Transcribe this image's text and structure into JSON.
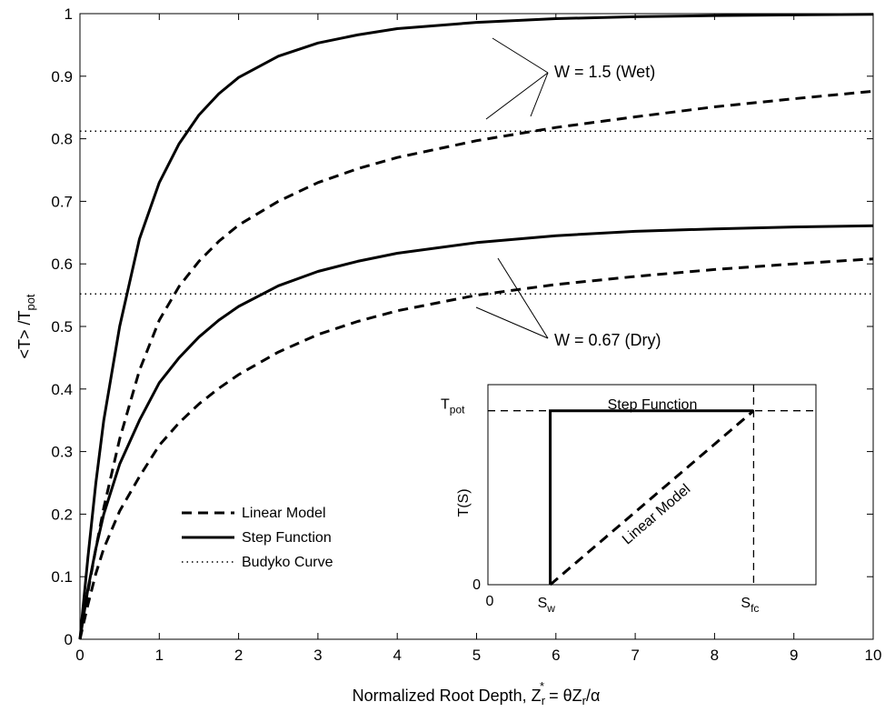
{
  "chart_data": [
    {
      "type": "line",
      "xlabel": {
        "text": "Normalized Root Depth, Z",
        "sub": "r",
        "sup": "*",
        "rhs": " = θZ",
        "rhs_sub": "r",
        "rhs_tail": "/α"
      },
      "ylabel": {
        "text": "<T> /T",
        "sub": "pot"
      },
      "xlim": [
        0,
        10
      ],
      "ylim": [
        0,
        1
      ],
      "xticks": [
        "0",
        "1",
        "2",
        "3",
        "4",
        "5",
        "6",
        "7",
        "8",
        "9",
        "10"
      ],
      "yticks": [
        "0",
        "0.1",
        "0.2",
        "0.3",
        "0.4",
        "0.5",
        "0.6",
        "0.7",
        "0.8",
        "0.9",
        "1"
      ],
      "legend_position": "lower-left",
      "legend": [
        {
          "label": "Linear Model",
          "style": "dashed"
        },
        {
          "label": "Step Function",
          "style": "solid"
        },
        {
          "label": "Budyko Curve",
          "style": "dotted"
        }
      ],
      "annotations": [
        {
          "text": "W = 1.5 (Wet)"
        },
        {
          "text": "W = 0.67 (Dry)"
        }
      ],
      "series": [
        {
          "style": "solid",
          "group": "W = 1.5 (Wet)",
          "x": [
            0,
            0.1,
            0.2,
            0.3,
            0.5,
            0.75,
            1,
            1.25,
            1.5,
            1.75,
            2,
            2.5,
            3,
            3.5,
            4,
            5,
            6,
            7,
            8,
            9,
            10
          ],
          "y": [
            0,
            0.13,
            0.25,
            0.35,
            0.5,
            0.64,
            0.73,
            0.792,
            0.838,
            0.872,
            0.898,
            0.932,
            0.953,
            0.966,
            0.976,
            0.986,
            0.992,
            0.995,
            0.997,
            0.998,
            0.999
          ]
        },
        {
          "style": "dashed",
          "group": "W = 1.5 (Wet)",
          "x": [
            0,
            0.1,
            0.2,
            0.3,
            0.5,
            0.75,
            1,
            1.25,
            1.5,
            1.75,
            2,
            2.5,
            3,
            3.5,
            4,
            5,
            6,
            7,
            8,
            9,
            10
          ],
          "y": [
            0,
            0.075,
            0.145,
            0.21,
            0.32,
            0.43,
            0.51,
            0.564,
            0.604,
            0.636,
            0.662,
            0.7,
            0.73,
            0.752,
            0.77,
            0.797,
            0.818,
            0.835,
            0.851,
            0.864,
            0.876
          ]
        },
        {
          "style": "solid",
          "group": "W = 0.67 (Dry)",
          "x": [
            0,
            0.1,
            0.2,
            0.3,
            0.5,
            0.75,
            1,
            1.25,
            1.5,
            1.75,
            2,
            2.5,
            3,
            3.5,
            4,
            5,
            6,
            7,
            8,
            9,
            10
          ],
          "y": [
            0,
            0.08,
            0.145,
            0.2,
            0.28,
            0.35,
            0.41,
            0.45,
            0.483,
            0.51,
            0.532,
            0.565,
            0.588,
            0.604,
            0.617,
            0.634,
            0.645,
            0.652,
            0.656,
            0.659,
            0.661
          ]
        },
        {
          "style": "dashed",
          "group": "W = 0.67 (Dry)",
          "x": [
            0,
            0.1,
            0.2,
            0.3,
            0.5,
            0.75,
            1,
            1.25,
            1.5,
            1.75,
            2,
            2.5,
            3,
            3.5,
            4,
            5,
            6,
            7,
            8,
            9,
            10
          ],
          "y": [
            0,
            0.055,
            0.105,
            0.145,
            0.205,
            0.26,
            0.31,
            0.346,
            0.376,
            0.401,
            0.423,
            0.459,
            0.487,
            0.508,
            0.525,
            0.55,
            0.567,
            0.58,
            0.591,
            0.6,
            0.608
          ]
        },
        {
          "style": "dotted",
          "x": [
            0,
            10
          ],
          "y": [
            0.812,
            0.812
          ]
        },
        {
          "style": "dotted",
          "x": [
            0,
            10
          ],
          "y": [
            0.552,
            0.552
          ]
        }
      ]
    },
    {
      "type": "line",
      "role": "inset",
      "title": "Step Function",
      "ylabel": "T(S)",
      "y_top_label": {
        "text": "T",
        "sub": "pot"
      },
      "y_zero_label": "0",
      "x_zero_label": "0",
      "x_sw_label": {
        "text": "S",
        "sub": "w"
      },
      "x_sfc_label": {
        "text": "S",
        "sub": "fc"
      },
      "line_label": "Linear Model",
      "xlim": [
        0,
        1
      ],
      "ylim": [
        0,
        1.15
      ],
      "s_w": 0.19,
      "s_fc": 0.81,
      "step_series": {
        "style": "solid",
        "x": [
          0.19,
          0.19,
          0.81
        ],
        "y": [
          0,
          1,
          1
        ]
      },
      "linear_series": {
        "style": "dashed",
        "x": [
          0.19,
          0.81
        ],
        "y": [
          0,
          1
        ]
      }
    }
  ]
}
